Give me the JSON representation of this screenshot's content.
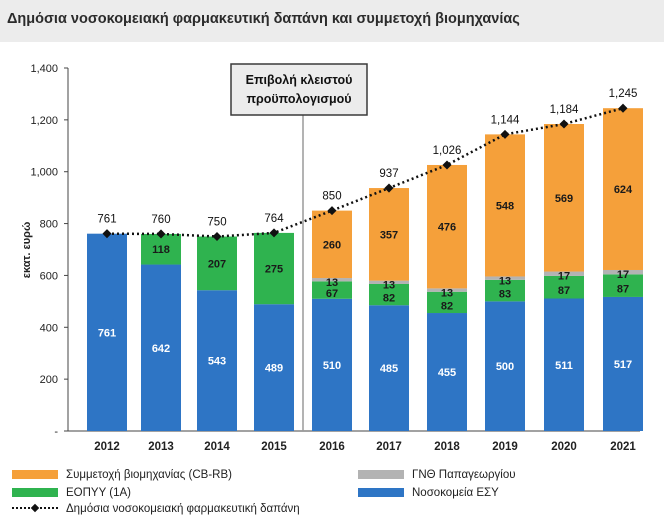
{
  "chart_data": {
    "type": "bar",
    "stacked": true,
    "title": "Δημόσια νοσοκομειακή φαρμακευτική δαπάνη και συμμετοχή βιομηχανίας",
    "ylabel": "εκατ. ευρώ",
    "ylim": [
      0,
      1400
    ],
    "yticks": [
      "-",
      "200",
      "400",
      "600",
      "800",
      "1,000",
      "1,200",
      "1,400"
    ],
    "categories": [
      "2012",
      "2013",
      "2014",
      "2015",
      "2016",
      "2017",
      "2018",
      "2019",
      "2020",
      "2021"
    ],
    "series": [
      {
        "name": "Νοσοκομεία ΕΣΥ",
        "color": "#2e75c5",
        "values": [
          761,
          642,
          543,
          489,
          510,
          485,
          455,
          500,
          511,
          517
        ]
      },
      {
        "name": "ΕΟΠΥΥ (1Α)",
        "color": "#2fb34f",
        "values": [
          0,
          118,
          207,
          275,
          67,
          82,
          82,
          83,
          87,
          87
        ]
      },
      {
        "name": "ΓΝΘ Παπαγεωργίου",
        "color": "#b3b3b3",
        "values": [
          0,
          0,
          0,
          0,
          13,
          13,
          13,
          13,
          17,
          17
        ]
      },
      {
        "name": "Συμμετοχή βιομηχανίας (CB-RB)",
        "color": "#f5a03a",
        "values": [
          0,
          0,
          0,
          0,
          260,
          357,
          476,
          548,
          569,
          624
        ]
      }
    ],
    "line": {
      "name": "Δημόσια νοσοκομειακή φαρμακευτική δαπάνη",
      "values": [
        761,
        760,
        750,
        764,
        850,
        937,
        1026,
        1144,
        1184,
        1245
      ],
      "labels": [
        "761",
        "760",
        "750",
        "764",
        "850",
        "937",
        "1,026",
        "1,144",
        "1,184",
        "1,245"
      ]
    },
    "annotation": {
      "line1": "Επιβολή κλειστού",
      "line2": "προϋπολογισμού"
    },
    "legend": [
      {
        "label": "Συμμετοχή βιομηχανίας (CB-RB)",
        "color": "#f5a03a"
      },
      {
        "label": "ΓΝΘ Παπαγεωργίου",
        "color": "#b3b3b3"
      },
      {
        "label": "ΕΟΠΥΥ (1Α)",
        "color": "#2fb34f"
      },
      {
        "label": "Νοσοκομεία ΕΣΥ",
        "color": "#2e75c5"
      },
      {
        "label": "Δημόσια νοσοκομειακή φαρμακευτική δαπάνη",
        "color": "#111111"
      }
    ]
  }
}
